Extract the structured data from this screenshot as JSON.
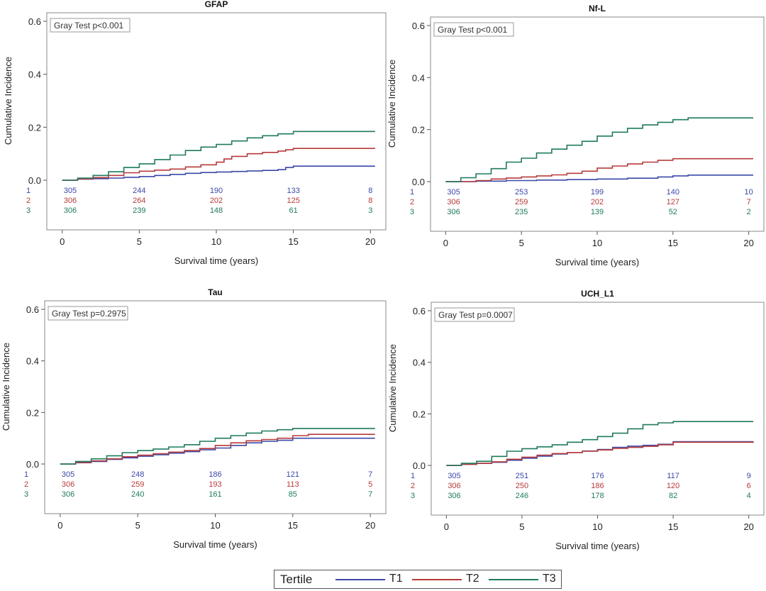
{
  "colors": {
    "T1": "#3b48a8",
    "T2": "#b83a3a",
    "T3": "#1f7a5c"
  },
  "legend": {
    "title": "Tertile",
    "items": [
      {
        "key": "T1",
        "label": "T1"
      },
      {
        "key": "T2",
        "label": "T2"
      },
      {
        "key": "T3",
        "label": "T3"
      }
    ]
  },
  "chart_data": [
    {
      "type": "line",
      "title": "GFAP",
      "xlabel": "Survival time (years)",
      "ylabel": "Cumulative Incidence",
      "xlim": [
        -1,
        21
      ],
      "ylim": [
        0,
        0.6
      ],
      "xticks": [
        0,
        5,
        10,
        15,
        20
      ],
      "yticks": [
        "0.0",
        "0.2",
        "0.4",
        "0.6"
      ],
      "inset": "Gray Test p<0.001",
      "risk_rows": [
        "1",
        "2",
        "3"
      ],
      "risk_table": [
        [
          "305",
          "244",
          "190",
          "133",
          "8"
        ],
        [
          "306",
          "264",
          "202",
          "125",
          "8"
        ],
        [
          "306",
          "239",
          "148",
          "61",
          "3"
        ]
      ],
      "series": [
        {
          "key": "T1",
          "points": [
            [
              0,
              0
            ],
            [
              1,
              0.004
            ],
            [
              2,
              0.006
            ],
            [
              3,
              0.008
            ],
            [
              4,
              0.011
            ],
            [
              5,
              0.014
            ],
            [
              6,
              0.018
            ],
            [
              7,
              0.022
            ],
            [
              8,
              0.026
            ],
            [
              9,
              0.029
            ],
            [
              10,
              0.031
            ],
            [
              11,
              0.033
            ],
            [
              12,
              0.035
            ],
            [
              13,
              0.037
            ],
            [
              14,
              0.04
            ],
            [
              14.5,
              0.048
            ],
            [
              15,
              0.053
            ],
            [
              20.3,
              0.053
            ]
          ]
        },
        {
          "key": "T2",
          "points": [
            [
              0,
              0
            ],
            [
              1,
              0.005
            ],
            [
              2,
              0.01
            ],
            [
              3,
              0.018
            ],
            [
              4,
              0.028
            ],
            [
              5,
              0.034
            ],
            [
              6,
              0.038
            ],
            [
              7,
              0.042
            ],
            [
              8,
              0.05
            ],
            [
              9,
              0.058
            ],
            [
              10,
              0.068
            ],
            [
              10.5,
              0.08
            ],
            [
              11,
              0.09
            ],
            [
              12,
              0.1
            ],
            [
              13,
              0.105
            ],
            [
              14,
              0.11
            ],
            [
              14.5,
              0.115
            ],
            [
              15,
              0.12
            ],
            [
              20.3,
              0.12
            ]
          ]
        },
        {
          "key": "T3",
          "points": [
            [
              0,
              0
            ],
            [
              1,
              0.008
            ],
            [
              2,
              0.018
            ],
            [
              3,
              0.032
            ],
            [
              4,
              0.048
            ],
            [
              5,
              0.062
            ],
            [
              6,
              0.078
            ],
            [
              7,
              0.095
            ],
            [
              8,
              0.112
            ],
            [
              9,
              0.125
            ],
            [
              10,
              0.135
            ],
            [
              11,
              0.148
            ],
            [
              12,
              0.16
            ],
            [
              13,
              0.168
            ],
            [
              14,
              0.175
            ],
            [
              15,
              0.184
            ],
            [
              20.3,
              0.184
            ]
          ]
        }
      ]
    },
    {
      "type": "line",
      "title": "Nf-L",
      "xlabel": "Survival time (years)",
      "ylabel": "Cumulative Incidence",
      "xlim": [
        -1,
        21
      ],
      "ylim": [
        0,
        0.6
      ],
      "xticks": [
        0,
        5,
        10,
        15,
        20
      ],
      "yticks": [
        "0.0",
        "0.2",
        "0.4",
        "0.6"
      ],
      "inset": "Gray Test p<0.001",
      "risk_rows": [
        "1",
        "2",
        "3"
      ],
      "risk_table": [
        [
          "305",
          "253",
          "199",
          "140",
          "10"
        ],
        [
          "306",
          "259",
          "202",
          "127",
          "7"
        ],
        [
          "306",
          "235",
          "139",
          "52",
          "2"
        ]
      ],
      "series": [
        {
          "key": "T1",
          "points": [
            [
              0,
              0
            ],
            [
              2,
              0.002
            ],
            [
              4,
              0.004
            ],
            [
              6,
              0.006
            ],
            [
              8,
              0.008
            ],
            [
              10,
              0.01
            ],
            [
              12,
              0.013
            ],
            [
              14,
              0.018
            ],
            [
              15,
              0.022
            ],
            [
              16,
              0.025
            ],
            [
              20.3,
              0.025
            ]
          ]
        },
        {
          "key": "T2",
          "points": [
            [
              0,
              0
            ],
            [
              2,
              0.004
            ],
            [
              3,
              0.01
            ],
            [
              4,
              0.014
            ],
            [
              5,
              0.018
            ],
            [
              6,
              0.022
            ],
            [
              7,
              0.026
            ],
            [
              8,
              0.032
            ],
            [
              9,
              0.04
            ],
            [
              10,
              0.052
            ],
            [
              11,
              0.06
            ],
            [
              12,
              0.068
            ],
            [
              13,
              0.075
            ],
            [
              14,
              0.082
            ],
            [
              15,
              0.088
            ],
            [
              20.3,
              0.088
            ]
          ]
        },
        {
          "key": "T3",
          "points": [
            [
              0,
              0
            ],
            [
              1,
              0.015
            ],
            [
              2,
              0.03
            ],
            [
              3,
              0.05
            ],
            [
              4,
              0.075
            ],
            [
              5,
              0.09
            ],
            [
              6,
              0.11
            ],
            [
              7,
              0.125
            ],
            [
              8,
              0.14
            ],
            [
              9,
              0.155
            ],
            [
              10,
              0.175
            ],
            [
              11,
              0.19
            ],
            [
              12,
              0.205
            ],
            [
              13,
              0.218
            ],
            [
              14,
              0.228
            ],
            [
              15,
              0.238
            ],
            [
              16,
              0.245
            ],
            [
              20.3,
              0.245
            ]
          ]
        }
      ]
    },
    {
      "type": "line",
      "title": "Tau",
      "xlabel": "Survival time (years)",
      "ylabel": "Cumulative Incidence",
      "xlim": [
        -1,
        21
      ],
      "ylim": [
        0,
        0.6
      ],
      "xticks": [
        0,
        5,
        10,
        15,
        20
      ],
      "yticks": [
        "0.0",
        "0.2",
        "0.4",
        "0.6"
      ],
      "inset": "Gray Test p=0.2975",
      "risk_rows": [
        "1",
        "2",
        "3"
      ],
      "risk_table": [
        [
          "305",
          "248",
          "186",
          "121",
          "7"
        ],
        [
          "306",
          "259",
          "193",
          "113",
          "5"
        ],
        [
          "306",
          "240",
          "161",
          "85",
          "7"
        ]
      ],
      "series": [
        {
          "key": "T1",
          "points": [
            [
              0,
              0
            ],
            [
              1,
              0.005
            ],
            [
              2,
              0.01
            ],
            [
              3,
              0.018
            ],
            [
              4,
              0.024
            ],
            [
              5,
              0.03
            ],
            [
              6,
              0.036
            ],
            [
              7,
              0.042
            ],
            [
              8,
              0.048
            ],
            [
              9,
              0.055
            ],
            [
              10,
              0.062
            ],
            [
              11,
              0.072
            ],
            [
              12,
              0.082
            ],
            [
              13,
              0.088
            ],
            [
              14,
              0.092
            ],
            [
              15,
              0.1
            ],
            [
              20.3,
              0.1
            ]
          ]
        },
        {
          "key": "T2",
          "points": [
            [
              0,
              0
            ],
            [
              1,
              0.006
            ],
            [
              2,
              0.012
            ],
            [
              3,
              0.02
            ],
            [
              4,
              0.028
            ],
            [
              5,
              0.034
            ],
            [
              6,
              0.04
            ],
            [
              7,
              0.046
            ],
            [
              8,
              0.052
            ],
            [
              9,
              0.06
            ],
            [
              10,
              0.072
            ],
            [
              11,
              0.082
            ],
            [
              12,
              0.09
            ],
            [
              13,
              0.095
            ],
            [
              14,
              0.1
            ],
            [
              15,
              0.11
            ],
            [
              16,
              0.115
            ],
            [
              20.3,
              0.115
            ]
          ]
        },
        {
          "key": "T3",
          "points": [
            [
              0,
              0
            ],
            [
              1,
              0.01
            ],
            [
              2,
              0.02
            ],
            [
              3,
              0.032
            ],
            [
              4,
              0.044
            ],
            [
              5,
              0.052
            ],
            [
              6,
              0.058
            ],
            [
              7,
              0.066
            ],
            [
              8,
              0.075
            ],
            [
              9,
              0.088
            ],
            [
              10,
              0.1
            ],
            [
              11,
              0.11
            ],
            [
              12,
              0.12
            ],
            [
              13,
              0.128
            ],
            [
              14,
              0.133
            ],
            [
              15,
              0.138
            ],
            [
              20.3,
              0.138
            ]
          ]
        }
      ]
    },
    {
      "type": "line",
      "title": "UCH_L1",
      "xlabel": "Survival time (years)",
      "ylabel": "Cumulative Incidence",
      "xlim": [
        -1,
        21
      ],
      "ylim": [
        0,
        0.6
      ],
      "xticks": [
        0,
        5,
        10,
        15,
        20
      ],
      "yticks": [
        "0.0",
        "0.2",
        "0.4",
        "0.6"
      ],
      "inset": "Gray Test p=0.0007",
      "risk_rows": [
        "1",
        "2",
        "3"
      ],
      "risk_table": [
        [
          "305",
          "251",
          "176",
          "117",
          "9"
        ],
        [
          "306",
          "250",
          "186",
          "120",
          "6"
        ],
        [
          "306",
          "246",
          "178",
          "82",
          "4"
        ]
      ],
      "series": [
        {
          "key": "T1",
          "points": [
            [
              0,
              0
            ],
            [
              1,
              0.004
            ],
            [
              2,
              0.008
            ],
            [
              3,
              0.012
            ],
            [
              4,
              0.02
            ],
            [
              5,
              0.028
            ],
            [
              6,
              0.036
            ],
            [
              7,
              0.044
            ],
            [
              8,
              0.05
            ],
            [
              9,
              0.056
            ],
            [
              10,
              0.062
            ],
            [
              11,
              0.07
            ],
            [
              12,
              0.075
            ],
            [
              13,
              0.078
            ],
            [
              14,
              0.082
            ],
            [
              15,
              0.092
            ],
            [
              20.3,
              0.092
            ]
          ]
        },
        {
          "key": "T2",
          "points": [
            [
              0,
              0
            ],
            [
              1,
              0.004
            ],
            [
              2,
              0.008
            ],
            [
              3,
              0.014
            ],
            [
              4,
              0.024
            ],
            [
              5,
              0.032
            ],
            [
              6,
              0.04
            ],
            [
              7,
              0.046
            ],
            [
              8,
              0.05
            ],
            [
              9,
              0.055
            ],
            [
              10,
              0.06
            ],
            [
              11,
              0.066
            ],
            [
              12,
              0.07
            ],
            [
              13,
              0.074
            ],
            [
              14,
              0.08
            ],
            [
              15,
              0.09
            ],
            [
              20.3,
              0.092
            ]
          ]
        },
        {
          "key": "T3",
          "points": [
            [
              0,
              0
            ],
            [
              1,
              0.008
            ],
            [
              2,
              0.016
            ],
            [
              3,
              0.035
            ],
            [
              4,
              0.055
            ],
            [
              5,
              0.065
            ],
            [
              6,
              0.072
            ],
            [
              7,
              0.08
            ],
            [
              8,
              0.09
            ],
            [
              9,
              0.1
            ],
            [
              10,
              0.112
            ],
            [
              11,
              0.125
            ],
            [
              12,
              0.142
            ],
            [
              13,
              0.158
            ],
            [
              14,
              0.165
            ],
            [
              15,
              0.17
            ],
            [
              20.3,
              0.17
            ]
          ]
        }
      ]
    }
  ]
}
